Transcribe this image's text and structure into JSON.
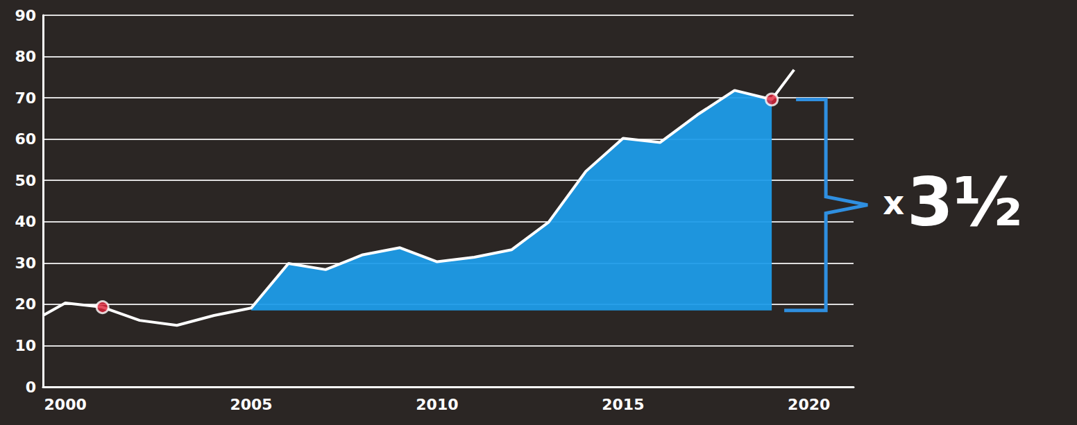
{
  "chart_data": {
    "type": "line",
    "x": [
      1999.4,
      2000,
      2001,
      2002,
      2003,
      2004,
      2005,
      2006,
      2007,
      2008,
      2009,
      2010,
      2011,
      2012,
      2013,
      2014,
      2015,
      2016,
      2017,
      2018,
      2019,
      2019.6
    ],
    "values": [
      17.3,
      20.3,
      19.3,
      16.1,
      14.9,
      17.3,
      19.1,
      29.9,
      28.4,
      32.0,
      33.7,
      30.3,
      31.4,
      33.2,
      39.9,
      52.2,
      60.2,
      59.2,
      65.9,
      71.8,
      69.6,
      76.8
    ],
    "color": "#ffffff",
    "xlim": [
      1999.4,
      2021.2
    ],
    "xticks": [
      2000,
      2005,
      2010,
      2015,
      2020
    ],
    "ylim": [
      0,
      90
    ],
    "yticks": [
      0,
      10,
      20,
      30,
      40,
      50,
      60,
      70,
      80,
      90
    ],
    "grid": true,
    "fill": {
      "from": 2005,
      "to": 2019,
      "baseline": 18.5,
      "color": "#1e9be8"
    },
    "highlights": {
      "x": [
        2001,
        2019
      ],
      "color": "#e0233a"
    },
    "marker": "circle",
    "annotation": {
      "text": "x 3½",
      "from": 18.5,
      "to": 69.6,
      "color": "#2f8fe0"
    }
  }
}
